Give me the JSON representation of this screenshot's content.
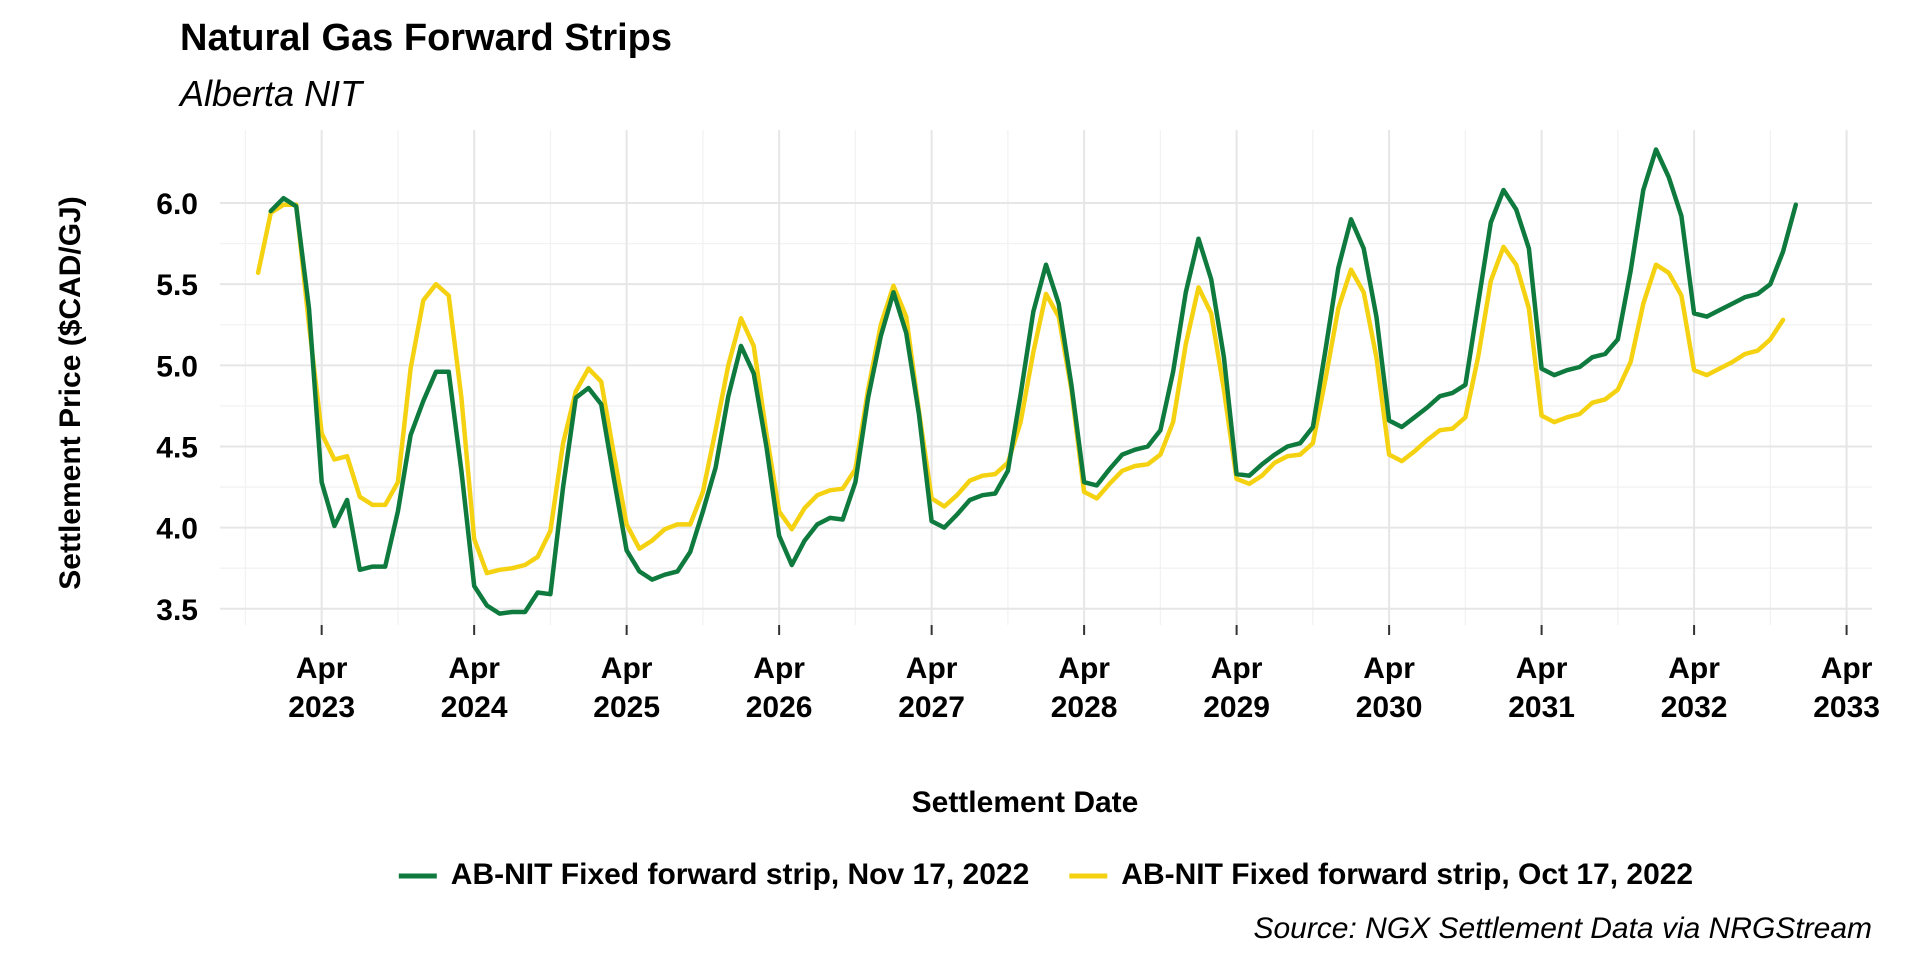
{
  "chart_data": {
    "type": "line",
    "title": "Natural Gas Forward Strips",
    "subtitle": "Alberta NIT",
    "xlabel": "Settlement Date",
    "ylabel": "Settlement Price ($CAD/GJ)",
    "caption": "Source: NGX Settlement Data via NRGStream",
    "ylim": [
      3.4,
      6.45
    ],
    "y_ticks": [
      "3.5",
      "4.0",
      "4.5",
      "5.0",
      "5.5",
      "6.0"
    ],
    "x_ticks": [
      {
        "month": "Apr",
        "year": "2023"
      },
      {
        "month": "Apr",
        "year": "2024"
      },
      {
        "month": "Apr",
        "year": "2025"
      },
      {
        "month": "Apr",
        "year": "2026"
      },
      {
        "month": "Apr",
        "year": "2027"
      },
      {
        "month": "Apr",
        "year": "2028"
      },
      {
        "month": "Apr",
        "year": "2029"
      },
      {
        "month": "Apr",
        "year": "2030"
      },
      {
        "month": "Apr",
        "year": "2031"
      },
      {
        "month": "Apr",
        "year": "2032"
      },
      {
        "month": "Apr",
        "year": "2033"
      }
    ],
    "grid": true,
    "legend_position": "bottom",
    "series": [
      {
        "name": "AB-NIT Fixed forward strip, Nov 17, 2022",
        "color": "#0f7a3e",
        "start": "2022-12",
        "values": [
          5.95,
          6.03,
          5.98,
          5.35,
          4.28,
          4.01,
          4.17,
          3.74,
          3.76,
          3.76,
          4.1,
          4.57,
          4.78,
          4.96,
          4.96,
          4.35,
          3.64,
          3.52,
          3.47,
          3.48,
          3.48,
          3.6,
          3.59,
          4.25,
          4.8,
          4.86,
          4.76,
          4.3,
          3.86,
          3.73,
          3.68,
          3.71,
          3.73,
          3.85,
          4.1,
          4.37,
          4.81,
          5.12,
          4.95,
          4.5,
          3.95,
          3.77,
          3.92,
          4.02,
          4.06,
          4.05,
          4.28,
          4.8,
          5.18,
          5.45,
          5.2,
          4.7,
          4.04,
          4.0,
          4.08,
          4.17,
          4.2,
          4.21,
          4.35,
          4.82,
          5.33,
          5.62,
          5.38,
          4.88,
          4.28,
          4.26,
          4.36,
          4.45,
          4.48,
          4.5,
          4.6,
          4.96,
          5.45,
          5.78,
          5.53,
          5.05,
          4.33,
          4.32,
          4.39,
          4.45,
          4.5,
          4.52,
          4.62,
          5.1,
          5.6,
          5.9,
          5.72,
          5.3,
          4.66,
          4.62,
          4.68,
          4.74,
          4.81,
          4.83,
          4.88,
          5.38,
          5.88,
          6.08,
          5.96,
          5.72,
          4.98,
          4.94,
          4.97,
          4.99,
          5.05,
          5.07,
          5.16,
          5.58,
          6.08,
          6.33,
          6.16,
          5.92,
          5.32,
          5.3,
          5.34,
          5.38,
          5.42,
          5.44,
          5.5,
          5.7,
          5.99
        ]
      },
      {
        "name": "AB-NIT Fixed forward strip, Oct 17, 2022",
        "color": "#f5d211",
        "start": "2022-11",
        "values": [
          5.57,
          5.94,
          5.99,
          5.99,
          5.25,
          4.58,
          4.42,
          4.44,
          4.19,
          4.14,
          4.14,
          4.28,
          4.98,
          5.4,
          5.5,
          5.43,
          4.8,
          3.93,
          3.72,
          3.74,
          3.75,
          3.77,
          3.82,
          3.98,
          4.52,
          4.84,
          4.98,
          4.9,
          4.45,
          4.02,
          3.87,
          3.92,
          3.99,
          4.02,
          4.02,
          4.22,
          4.6,
          5.0,
          5.29,
          5.12,
          4.58,
          4.1,
          3.99,
          4.12,
          4.2,
          4.23,
          4.24,
          4.36,
          4.85,
          5.25,
          5.49,
          5.3,
          4.72,
          4.18,
          4.13,
          4.2,
          4.29,
          4.32,
          4.33,
          4.4,
          4.65,
          5.08,
          5.44,
          5.3,
          4.85,
          4.22,
          4.18,
          4.27,
          4.35,
          4.38,
          4.39,
          4.45,
          4.65,
          5.13,
          5.48,
          5.32,
          4.85,
          4.3,
          4.27,
          4.32,
          4.4,
          4.44,
          4.45,
          4.52,
          4.92,
          5.35,
          5.59,
          5.45,
          5.05,
          4.45,
          4.41,
          4.47,
          4.54,
          4.6,
          4.61,
          4.68,
          5.05,
          5.52,
          5.73,
          5.62,
          5.35,
          4.69,
          4.65,
          4.68,
          4.7,
          4.77,
          4.79,
          4.85,
          5.02,
          5.38,
          5.62,
          5.57,
          5.43,
          4.97,
          4.94,
          4.98,
          5.02,
          5.07,
          5.09,
          5.16,
          5.28
        ]
      }
    ]
  }
}
